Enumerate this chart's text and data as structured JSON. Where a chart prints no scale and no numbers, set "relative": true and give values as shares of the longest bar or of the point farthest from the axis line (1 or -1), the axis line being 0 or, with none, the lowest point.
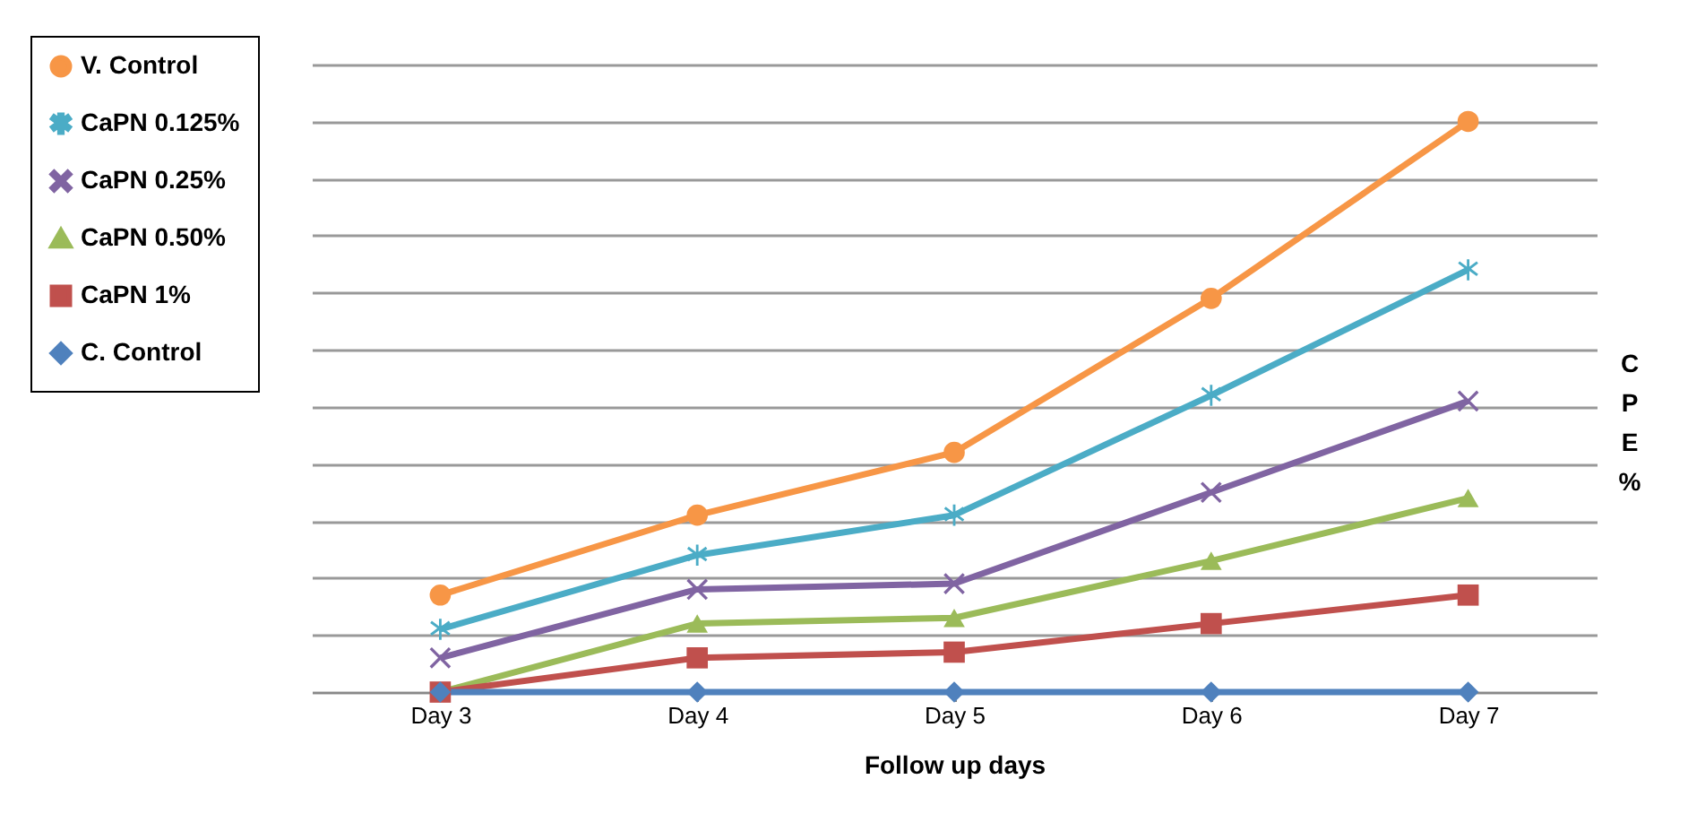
{
  "chart_data": {
    "type": "line",
    "relative": true,
    "xlabel": "Follow up days",
    "ylabel": "CPE %",
    "legend": "left",
    "grid": "y",
    "categories": [
      "Day 3",
      "Day 4",
      "Day 5",
      "Day 6",
      "Day 7"
    ],
    "series": [
      {
        "name": "V. Control",
        "color": "#f79646",
        "marker": "circle",
        "values": [
          0.17,
          0.31,
          0.42,
          0.69,
          1
        ]
      },
      {
        "name": "CaPN 0.125%",
        "color": "#4bacc6",
        "marker": "star",
        "values": [
          0.11,
          0.24,
          0.31,
          0.52,
          0.74
        ]
      },
      {
        "name": "CaPN 0.25%",
        "color": "#8064a2",
        "marker": "cross",
        "values": [
          0.06,
          0.18,
          0.19,
          0.35,
          0.51
        ]
      },
      {
        "name": "CaPN 0.50%",
        "color": "#9bbb59",
        "marker": "triangle",
        "values": [
          0,
          0.12,
          0.13,
          0.23,
          0.34
        ]
      },
      {
        "name": "CaPN 1%",
        "color": "#c0504d",
        "marker": "square",
        "values": [
          0,
          0.06,
          0.07,
          0.12,
          0.17
        ]
      },
      {
        "name": "C. Control",
        "color": "#4f81bd",
        "marker": "diamond",
        "values": [
          0,
          0,
          0,
          0,
          0
        ]
      }
    ]
  }
}
